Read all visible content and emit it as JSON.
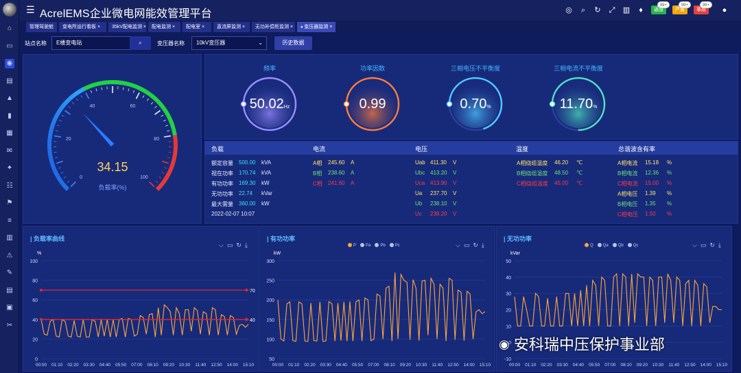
{
  "app": {
    "title": "AcrelEMS企业微电网能效管理平台"
  },
  "sidebar": {
    "icons": [
      "home-icon",
      "monitor-icon",
      "dashboard-icon",
      "layers-icon",
      "alarm-icon",
      "bar-chart-icon",
      "image-icon",
      "mail-icon",
      "bulb-icon",
      "grid-icon",
      "tower-icon",
      "list-icon",
      "table-icon",
      "bell-icon",
      "edit-icon",
      "doc-icon",
      "book-icon",
      "wrench-icon"
    ]
  },
  "topbar": {
    "icons": [
      "target-icon",
      "search-icon",
      "refresh-icon",
      "expand-icon",
      "chart-icon",
      "shirt-icon"
    ],
    "badges": [
      {
        "label": "通道",
        "count": "99+",
        "color": "#27b44a"
      },
      {
        "label": "严重",
        "count": "99+",
        "color": "#f2a60c"
      },
      {
        "label": "事故",
        "count": "99+",
        "color": "#e8413a"
      }
    ]
  },
  "tabs": [
    "管理驾驶舱",
    "变电所运行看板",
    "35kV配电监测",
    "配电监测",
    "配电室",
    "直流屏监测",
    "无功补偿柜监测",
    "变压器监测"
  ],
  "filter": {
    "station_label": "站点名称",
    "station_value": "E楼变电站",
    "transformer_label": "变压器名称",
    "transformer_value": "10kV变压器",
    "history_button": "历史数据"
  },
  "gauge": {
    "label": "负载率(%)",
    "value": "34.15",
    "value_num": 34.15,
    "ticks": [
      "0",
      "20",
      "40",
      "60",
      "80",
      "100"
    ]
  },
  "metrics": [
    {
      "title": "频率",
      "value": "50.02",
      "unit": "Hz",
      "color": "#9b8cff",
      "ring_fraction": 1.0
    },
    {
      "title": "功率因数",
      "value": "0.99",
      "unit": "",
      "color": "#ff7a3a",
      "ring_fraction": 0.99
    },
    {
      "title": "三相电压不平衡度",
      "value": "0.70",
      "unit": "%",
      "color": "#4fc8ff",
      "ring_fraction": 0.7
    },
    {
      "title": "三相电流不平衡度",
      "value": "11.70",
      "unit": "%",
      "color": "#4fe0c0",
      "ring_fraction": 0.75
    }
  ],
  "table": {
    "headers": [
      "负载",
      "电流",
      "电压",
      "温度",
      "总谐波含有率"
    ],
    "load": [
      {
        "label": "额定容量",
        "value": "500.00",
        "unit": "kVA"
      },
      {
        "label": "视在功率",
        "value": "170.74",
        "unit": "kVA"
      },
      {
        "label": "有功功率",
        "value": "169.30",
        "unit": "kW"
      },
      {
        "label": "无功功率",
        "value": "22.74",
        "unit": "kVar"
      },
      {
        "label": "最大需量",
        "value": "360.00",
        "unit": "kW"
      }
    ],
    "timestamp": "2022-02-07 10:07",
    "current": [
      {
        "label": "A相",
        "value": "245.60",
        "unit": "A"
      },
      {
        "label": "B相",
        "value": "238.60",
        "unit": "A"
      },
      {
        "label": "C相",
        "value": "241.60",
        "unit": "A"
      }
    ],
    "voltage": [
      {
        "label": "Uab",
        "value": "411.30",
        "unit": "V"
      },
      {
        "label": "Ubc",
        "value": "413.20",
        "unit": "V"
      },
      {
        "label": "Uca",
        "value": "413.90",
        "unit": "V"
      },
      {
        "label": "Ua",
        "value": "237.70",
        "unit": "V"
      },
      {
        "label": "Ub",
        "value": "238.10",
        "unit": "V"
      },
      {
        "label": "Uc",
        "value": "238.20",
        "unit": "V"
      }
    ],
    "temperature": [
      {
        "label": "A相绕组温度",
        "value": "46.20",
        "unit": "℃"
      },
      {
        "label": "B相绕组温度",
        "value": "48.50",
        "unit": "℃"
      },
      {
        "label": "C相绕组温度",
        "value": "45.00",
        "unit": "℃"
      }
    ],
    "thd": [
      {
        "label": "A相电流",
        "value": "15.18",
        "unit": "%"
      },
      {
        "label": "B相电流",
        "value": "12.36",
        "unit": "%"
      },
      {
        "label": "C相电流",
        "value": "15.00",
        "unit": "%"
      },
      {
        "label": "A相电压",
        "value": "1.39",
        "unit": "%"
      },
      {
        "label": "B相电压",
        "value": "1.35",
        "unit": "%"
      },
      {
        "label": "C相电压",
        "value": "1.50",
        "unit": "%"
      }
    ]
  },
  "chart_tool_icons": [
    "line-view-icon",
    "bar-view-icon",
    "restore-icon",
    "download-icon"
  ],
  "chart_data": [
    {
      "type": "line",
      "title": "负载率曲线",
      "ylabel": "%",
      "ylim": [
        0,
        100
      ],
      "yticks": [
        "0",
        "20",
        "40",
        "60",
        "80",
        "100"
      ],
      "xticks": [
        "00:00",
        "01:10",
        "02:20",
        "03:30",
        "04:40",
        "05:50",
        "07:00",
        "08:10",
        "09:20",
        "10:30",
        "11:40",
        "12:50",
        "14:00",
        "15:10"
      ],
      "marklines": [
        {
          "label": "70",
          "value": 70
        },
        {
          "label": "40",
          "value": 40
        }
      ],
      "series": [
        {
          "values": [
            40,
            25,
            24,
            38,
            40,
            23,
            22,
            40,
            38,
            23,
            22,
            39,
            23,
            22,
            40,
            22,
            22,
            40,
            38,
            22,
            40,
            23,
            40,
            22,
            40,
            22,
            40,
            41,
            22,
            41,
            40,
            23,
            25,
            44,
            42,
            25,
            45,
            46,
            22,
            52,
            24,
            55,
            52,
            48,
            24,
            52,
            46,
            24,
            50,
            50,
            28,
            52,
            49,
            25,
            48,
            46,
            24,
            52,
            50,
            24,
            45,
            43,
            24,
            44,
            42,
            25,
            34,
            35,
            32,
            35
          ]
        }
      ]
    },
    {
      "type": "line",
      "title": "有功功率",
      "ylabel": "kW",
      "ylim": [
        50,
        300
      ],
      "yticks": [
        "50",
        "100",
        "150",
        "200",
        "250",
        "300"
      ],
      "xticks": [
        "00:00",
        "01:10",
        "02:20",
        "03:30",
        "04:40",
        "05:50",
        "07:00",
        "08:10",
        "09:20",
        "10:30",
        "11:40",
        "12:50",
        "14:00",
        "15:10"
      ],
      "legend": [
        "P",
        "Pa",
        "Pb",
        "Pc"
      ],
      "series": [
        {
          "name": "P",
          "values": [
            200,
            100,
            95,
            190,
            195,
            96,
            94,
            195,
            190,
            95,
            94,
            192,
            96,
            95,
            195,
            94,
            95,
            196,
            190,
            95,
            192,
            96,
            195,
            95,
            196,
            95,
            195,
            200,
            95,
            205,
            200,
            96,
            100,
            215,
            210,
            100,
            230,
            235,
            95,
            270,
            100,
            265,
            250,
            245,
            98,
            252,
            230,
            96,
            248,
            250,
            110,
            255,
            240,
            100,
            240,
            230,
            95,
            255,
            250,
            98,
            225,
            220,
            96,
            222,
            215,
            100,
            170,
            175,
            165,
            170
          ]
        }
      ]
    },
    {
      "type": "line",
      "title": "无功功率",
      "ylabel": "kVar",
      "ylim": [
        -10,
        50
      ],
      "yticks": [
        "-10",
        "0",
        "10",
        "20",
        "30",
        "40",
        "50"
      ],
      "xticks": [
        "00:00",
        "01:10",
        "02:20",
        "03:30",
        "04:40",
        "05:50",
        "07:00",
        "08:10",
        "09:20",
        "10:30",
        "11:40",
        "12:50",
        "14:00",
        "15:10"
      ],
      "legend": [
        "Q",
        "Qa",
        "Qb",
        "Qc"
      ],
      "series": [
        {
          "name": "Q",
          "values": [
            28,
            10,
            10,
            28,
            20,
            10,
            10,
            30,
            28,
            10,
            10,
            27,
            10,
            10,
            28,
            10,
            10,
            30,
            30,
            10,
            30,
            10,
            32,
            10,
            35,
            10,
            38,
            35,
            10,
            40,
            38,
            10,
            10,
            40,
            42,
            10,
            42,
            40,
            10,
            42,
            12,
            42,
            40,
            40,
            10,
            40,
            38,
            10,
            40,
            40,
            12,
            42,
            38,
            12,
            40,
            38,
            10,
            36,
            38,
            10,
            38,
            35,
            10,
            36,
            34,
            12,
            22,
            22,
            20,
            20
          ]
        }
      ]
    }
  ],
  "watermark": "安科瑞中压保护事业部"
}
